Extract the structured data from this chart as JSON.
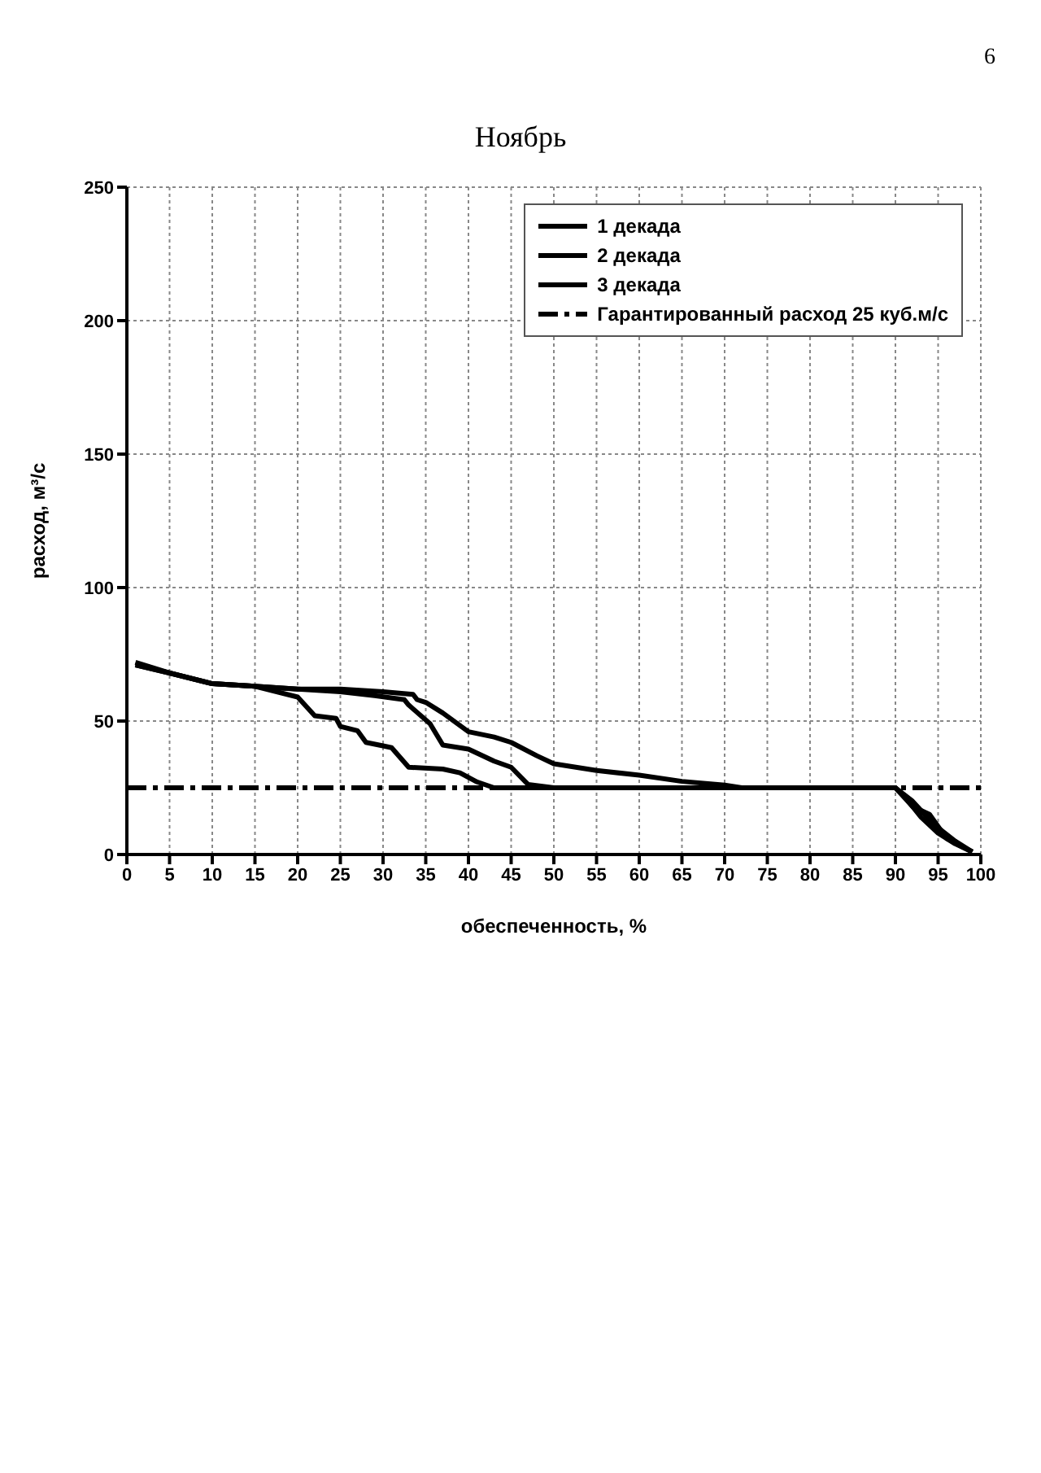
{
  "chart_data": {
    "type": "line",
    "title": "Ноябрь",
    "xlabel": "обеспеченность, %",
    "ylabel": "расход, м³/с",
    "annotations": [
      "6"
    ],
    "series": [
      {
        "name": "1 декада",
        "color": "#000000",
        "x": [
          1,
          5,
          10,
          15,
          20,
          25,
          30,
          33.5,
          34,
          35,
          37,
          40,
          43,
          45,
          48,
          50,
          55,
          60,
          65,
          70,
          72,
          80,
          90,
          92,
          94,
          95,
          97,
          99
        ],
        "values": [
          72,
          68,
          64,
          63,
          62,
          62,
          61,
          60,
          58,
          57,
          53,
          46,
          44,
          42,
          37,
          34,
          31.5,
          29.7,
          27.4,
          26,
          25,
          25,
          25,
          20,
          13,
          10,
          5,
          1
        ]
      },
      {
        "name": "2 декада",
        "color": "#000000",
        "x": [
          1,
          5,
          10,
          15,
          20,
          25,
          29,
          32.5,
          33,
          35.5,
          37,
          40,
          43,
          45,
          47,
          50,
          60,
          70,
          80,
          90,
          91,
          93,
          95,
          97,
          99
        ],
        "values": [
          71,
          68,
          64,
          63,
          62,
          61,
          59.5,
          58,
          56,
          49,
          41,
          39.5,
          35,
          32.7,
          26.2,
          25,
          25,
          25,
          25,
          25,
          22,
          14,
          8,
          4,
          1
        ]
      },
      {
        "name": "3 декада",
        "color": "#000000",
        "x": [
          1,
          5,
          10,
          15,
          20,
          22,
          24.5,
          25,
          27,
          28,
          30,
          31,
          33,
          37,
          39,
          41,
          43,
          50,
          60,
          70,
          80,
          90,
          92,
          94,
          96,
          99
        ],
        "values": [
          71,
          68,
          64,
          63,
          59,
          52,
          51,
          48,
          46.4,
          42,
          40.7,
          40,
          32.7,
          32,
          30.6,
          27.2,
          25,
          25,
          25,
          25,
          25,
          25,
          18,
          15,
          6,
          1
        ]
      }
    ],
    "ref_lines": [
      {
        "axis": "y",
        "value": 25,
        "label": "Гарантированный расход 25 куб.м/с",
        "color": "#000000",
        "line_style": "dashdot"
      }
    ],
    "xlim": [
      0,
      100
    ],
    "xticks": [
      0,
      5,
      10,
      15,
      20,
      25,
      30,
      35,
      40,
      45,
      50,
      55,
      60,
      65,
      70,
      75,
      80,
      85,
      90,
      95,
      100
    ],
    "ylim": [
      0,
      250
    ],
    "yticks": [
      0,
      50,
      100,
      150,
      200,
      250
    ],
    "grid": true,
    "legend": "top right",
    "marker": "none",
    "line_style": "solid"
  }
}
